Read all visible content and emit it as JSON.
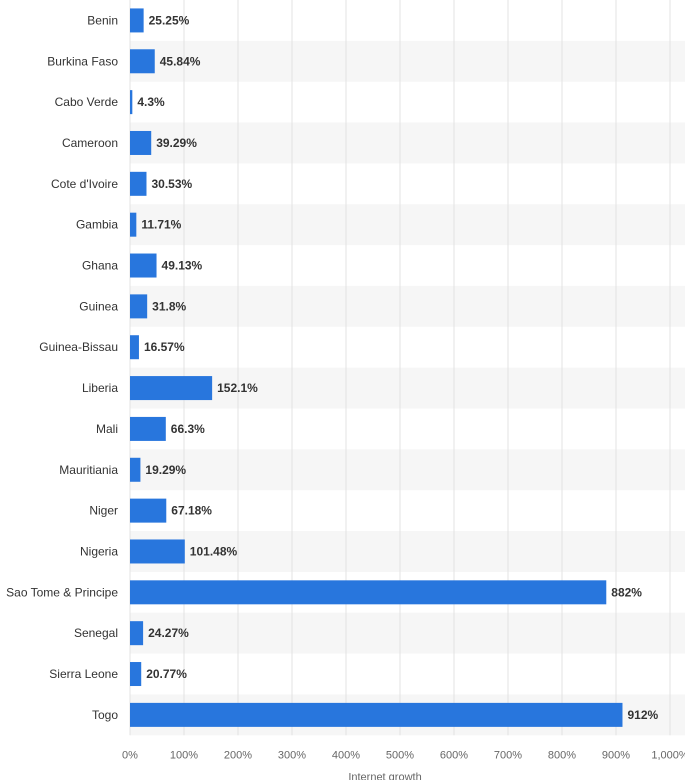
{
  "chart_data": {
    "type": "bar",
    "orientation": "horizontal",
    "categories": [
      "Benin",
      "Burkina Faso",
      "Cabo Verde",
      "Cameroon",
      "Cote d'Ivoire",
      "Gambia",
      "Ghana",
      "Guinea",
      "Guinea-Bissau",
      "Liberia",
      "Mali",
      "Mauritiania",
      "Niger",
      "Nigeria",
      "Sao Tome & Principe",
      "Senegal",
      "Sierra Leone",
      "Togo"
    ],
    "values": [
      25.25,
      45.84,
      4.3,
      39.29,
      30.53,
      11.71,
      49.13,
      31.8,
      16.57,
      152.1,
      66.3,
      19.29,
      67.18,
      101.48,
      882,
      24.27,
      20.77,
      912
    ],
    "value_labels": [
      "25.25%",
      "45.84%",
      "4.3%",
      "39.29%",
      "30.53%",
      "11.71%",
      "49.13%",
      "31.8%",
      "16.57%",
      "152.1%",
      "66.3%",
      "19.29%",
      "67.18%",
      "101.48%",
      "882%",
      "24.27%",
      "20.77%",
      "912%"
    ],
    "xlim": [
      0,
      1000
    ],
    "xticks": [
      0,
      100,
      200,
      300,
      400,
      500,
      600,
      700,
      800,
      900,
      1000
    ],
    "xtick_labels": [
      "0%",
      "100%",
      "200%",
      "300%",
      "400%",
      "500%",
      "600%",
      "700%",
      "800%",
      "900%",
      "1,000%"
    ],
    "xlabel": "Internet growth",
    "ylabel": "",
    "title": "",
    "grid": true,
    "legend": "none",
    "colors": {
      "bar": "#2876dd",
      "stripe": "#f6f6f6",
      "grid": "#e3e3e3",
      "text": "#333333",
      "tick_text": "#666666"
    }
  }
}
